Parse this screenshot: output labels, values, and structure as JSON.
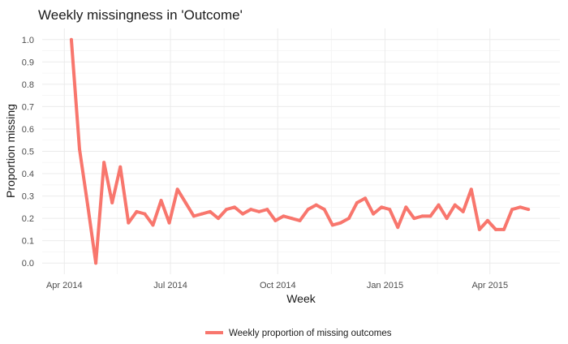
{
  "chart_data": {
    "type": "line",
    "title": "Weekly missingness in 'Outcome'",
    "xlabel": "Week",
    "ylabel": "Proportion missing",
    "ylim": [
      0.0,
      1.0
    ],
    "yticks": [
      "0.0",
      "0.1",
      "0.2",
      "0.3",
      "0.4",
      "0.5",
      "0.6",
      "0.7",
      "0.8",
      "0.9",
      "1.0"
    ],
    "xticks": [
      {
        "date": "2014-04-01",
        "label": "Apr 2014"
      },
      {
        "date": "2014-07-01",
        "label": "Jul 2014"
      },
      {
        "date": "2014-10-01",
        "label": "Oct 2014"
      },
      {
        "date": "2015-01-01",
        "label": "Jan 2015"
      },
      {
        "date": "2015-04-01",
        "label": "Apr 2015"
      }
    ],
    "xlim": [
      "2014-03-13",
      "2015-05-31"
    ],
    "grid": true,
    "legend_position": "bottom",
    "series": [
      {
        "name": "Weekly proportion of missing outcomes",
        "color": "#F8766D",
        "x": [
          "2014-04-07",
          "2014-04-14",
          "2014-04-21",
          "2014-04-28",
          "2014-05-05",
          "2014-05-12",
          "2014-05-19",
          "2014-05-26",
          "2014-06-02",
          "2014-06-09",
          "2014-06-16",
          "2014-06-23",
          "2014-06-30",
          "2014-07-07",
          "2014-07-14",
          "2014-07-21",
          "2014-07-28",
          "2014-08-04",
          "2014-08-11",
          "2014-08-18",
          "2014-08-25",
          "2014-09-01",
          "2014-09-08",
          "2014-09-15",
          "2014-09-22",
          "2014-09-29",
          "2014-10-06",
          "2014-10-13",
          "2014-10-20",
          "2014-10-27",
          "2014-11-03",
          "2014-11-10",
          "2014-11-17",
          "2014-11-24",
          "2014-12-01",
          "2014-12-08",
          "2014-12-15",
          "2014-12-22",
          "2014-12-29",
          "2015-01-05",
          "2015-01-12",
          "2015-01-19",
          "2015-01-26",
          "2015-02-02",
          "2015-02-09",
          "2015-02-16",
          "2015-02-23",
          "2015-03-02",
          "2015-03-09",
          "2015-03-16",
          "2015-03-23",
          "2015-03-30",
          "2015-04-06",
          "2015-04-13",
          "2015-04-20",
          "2015-04-27",
          "2015-05-04"
        ],
        "y": [
          1.0,
          0.51,
          0.26,
          0.0,
          0.45,
          0.27,
          0.43,
          0.18,
          0.23,
          0.22,
          0.17,
          0.28,
          0.18,
          0.33,
          0.27,
          0.21,
          0.22,
          0.23,
          0.2,
          0.24,
          0.25,
          0.22,
          0.24,
          0.23,
          0.24,
          0.19,
          0.21,
          0.2,
          0.19,
          0.24,
          0.26,
          0.24,
          0.17,
          0.18,
          0.2,
          0.27,
          0.29,
          0.22,
          0.25,
          0.24,
          0.16,
          0.25,
          0.2,
          0.21,
          0.21,
          0.26,
          0.2,
          0.26,
          0.23,
          0.33,
          0.15,
          0.19,
          0.15,
          0.15,
          0.24,
          0.25,
          0.24
        ]
      }
    ]
  }
}
